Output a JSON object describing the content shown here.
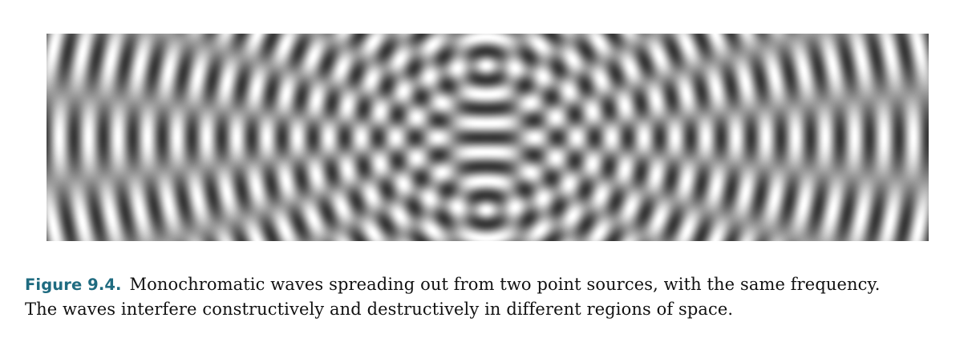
{
  "figure": {
    "label": "Figure 9.4.",
    "caption_line1": "Monochromatic waves spreading out from two point sources, with the same frequency.",
    "caption_line2": "The waves interfere constructively and destructively in different regions of space.",
    "label_color": "#1f6b80",
    "pattern": {
      "description_type": "two-source interference pattern, grayscale",
      "sources": 2
    }
  }
}
